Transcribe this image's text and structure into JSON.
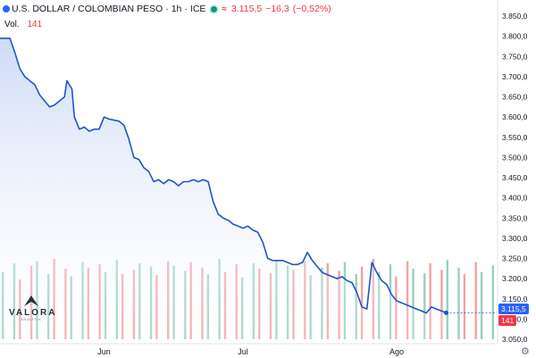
{
  "header": {
    "symbol_title": "U.S. DOLLAR / COLOMBIAN PESO",
    "interval": "1h",
    "exchange": "ICE",
    "last_price": "3.115,5",
    "change": "−16,3",
    "change_pct": "(−0,52%)",
    "separator": "·",
    "wave_glyph": "≈"
  },
  "volume": {
    "label": "Vol.",
    "value": "141"
  },
  "price_tag": "3.115,5",
  "volume_tag": "141",
  "logo": {
    "name": "VALORA",
    "sub": "ANALITIK"
  },
  "colors": {
    "line": "#1f55c9",
    "area_top": "#c9d6f5",
    "area_bottom": "#ffffff",
    "volume_up": "#7ec4b2",
    "volume_down": "#f0898e",
    "negative": "#f23645",
    "accent": "#2962ff"
  },
  "settings_icon": "gear-icon",
  "chart_data": {
    "type": "line",
    "ylim": [
      3050,
      3850
    ],
    "y_ticks": [
      "3.850,0",
      "3.800,0",
      "3.750,0",
      "3.700,0",
      "3.650,0",
      "3.600,0",
      "3.550,0",
      "3.500,0",
      "3.450,0",
      "3.400,0",
      "3.350,0",
      "3.300,0",
      "3.250,0",
      "3.200,0",
      "3.150,0",
      "3.100,0",
      "3.050,0"
    ],
    "y_tick_values": [
      3850,
      3800,
      3750,
      3700,
      3650,
      3600,
      3550,
      3500,
      3450,
      3400,
      3350,
      3300,
      3250,
      3200,
      3150,
      3100,
      3050
    ],
    "x_ticks": [
      {
        "label": "Jun",
        "x": 21
      },
      {
        "label": "Jul",
        "x": 49
      },
      {
        "label": "Ago",
        "x": 80
      }
    ],
    "x_range": [
      0,
      100
    ],
    "series": [
      {
        "values": [
          {
            "x": 0,
            "y": 3795
          },
          {
            "x": 2,
            "y": 3795
          },
          {
            "x": 3,
            "y": 3760
          },
          {
            "x": 4,
            "y": 3720
          },
          {
            "x": 5,
            "y": 3700
          },
          {
            "x": 6,
            "y": 3690
          },
          {
            "x": 7,
            "y": 3680
          },
          {
            "x": 8,
            "y": 3655
          },
          {
            "x": 9,
            "y": 3640
          },
          {
            "x": 10,
            "y": 3625
          },
          {
            "x": 11,
            "y": 3630
          },
          {
            "x": 12,
            "y": 3640
          },
          {
            "x": 13,
            "y": 3650
          },
          {
            "x": 13.5,
            "y": 3690
          },
          {
            "x": 14.5,
            "y": 3670
          },
          {
            "x": 15,
            "y": 3600
          },
          {
            "x": 16,
            "y": 3570
          },
          {
            "x": 17,
            "y": 3575
          },
          {
            "x": 18,
            "y": 3565
          },
          {
            "x": 19,
            "y": 3570
          },
          {
            "x": 20,
            "y": 3570
          },
          {
            "x": 21,
            "y": 3600
          },
          {
            "x": 22,
            "y": 3595
          },
          {
            "x": 24,
            "y": 3590
          },
          {
            "x": 25,
            "y": 3580
          },
          {
            "x": 26,
            "y": 3545
          },
          {
            "x": 27,
            "y": 3500
          },
          {
            "x": 28,
            "y": 3495
          },
          {
            "x": 29,
            "y": 3475
          },
          {
            "x": 30,
            "y": 3465
          },
          {
            "x": 31,
            "y": 3440
          },
          {
            "x": 32,
            "y": 3445
          },
          {
            "x": 33,
            "y": 3435
          },
          {
            "x": 34,
            "y": 3445
          },
          {
            "x": 35,
            "y": 3440
          },
          {
            "x": 36,
            "y": 3430
          },
          {
            "x": 37,
            "y": 3440
          },
          {
            "x": 38,
            "y": 3440
          },
          {
            "x": 39,
            "y": 3445
          },
          {
            "x": 40,
            "y": 3440
          },
          {
            "x": 41,
            "y": 3445
          },
          {
            "x": 42,
            "y": 3440
          },
          {
            "x": 43,
            "y": 3390
          },
          {
            "x": 44,
            "y": 3360
          },
          {
            "x": 45,
            "y": 3350
          },
          {
            "x": 46,
            "y": 3345
          },
          {
            "x": 47,
            "y": 3335
          },
          {
            "x": 48,
            "y": 3330
          },
          {
            "x": 49,
            "y": 3325
          },
          {
            "x": 50,
            "y": 3330
          },
          {
            "x": 51,
            "y": 3320
          },
          {
            "x": 52,
            "y": 3315
          },
          {
            "x": 53,
            "y": 3290
          },
          {
            "x": 54,
            "y": 3250
          },
          {
            "x": 55,
            "y": 3245
          },
          {
            "x": 56,
            "y": 3245
          },
          {
            "x": 57,
            "y": 3245
          },
          {
            "x": 58,
            "y": 3240
          },
          {
            "x": 59,
            "y": 3235
          },
          {
            "x": 60,
            "y": 3235
          },
          {
            "x": 61,
            "y": 3240
          },
          {
            "x": 62,
            "y": 3265
          },
          {
            "x": 63,
            "y": 3245
          },
          {
            "x": 64,
            "y": 3230
          },
          {
            "x": 65,
            "y": 3215
          },
          {
            "x": 66,
            "y": 3210
          },
          {
            "x": 67,
            "y": 3205
          },
          {
            "x": 68,
            "y": 3200
          },
          {
            "x": 69,
            "y": 3205
          },
          {
            "x": 70,
            "y": 3195
          },
          {
            "x": 71,
            "y": 3190
          },
          {
            "x": 72,
            "y": 3165
          },
          {
            "x": 73,
            "y": 3130
          },
          {
            "x": 74,
            "y": 3125
          },
          {
            "x": 75,
            "y": 3240
          },
          {
            "x": 76,
            "y": 3215
          },
          {
            "x": 77,
            "y": 3195
          },
          {
            "x": 78,
            "y": 3185
          },
          {
            "x": 79,
            "y": 3160
          },
          {
            "x": 80,
            "y": 3145
          },
          {
            "x": 81,
            "y": 3140
          },
          {
            "x": 82,
            "y": 3135
          },
          {
            "x": 83,
            "y": 3130
          },
          {
            "x": 84,
            "y": 3125
          },
          {
            "x": 85,
            "y": 3120
          },
          {
            "x": 86,
            "y": 3115
          },
          {
            "x": 87,
            "y": 3130
          },
          {
            "x": 88,
            "y": 3125
          },
          {
            "x": 89,
            "y": 3120
          },
          {
            "x": 90,
            "y": 3115.5
          }
        ]
      }
    ],
    "volume_bars": [
      62,
      0,
      70,
      55,
      0,
      68,
      72,
      0,
      60,
      74,
      0,
      65,
      58,
      0,
      71,
      66,
      0,
      69,
      62,
      0,
      73,
      60,
      0,
      64,
      70,
      0,
      67,
      59,
      0,
      72,
      68,
      0,
      63,
      71,
      0,
      66,
      60,
      0,
      74,
      62,
      0,
      69,
      57,
      0,
      70,
      65,
      0,
      61,
      73,
      0,
      68,
      64,
      0,
      72,
      59,
      0,
      66,
      70,
      0,
      63,
      71,
      0,
      60,
      67,
      0,
      74,
      62,
      0,
      69,
      58,
      0,
      72,
      65,
      0,
      61,
      70,
      0,
      64,
      73,
      0,
      66,
      60,
      0,
      71,
      62,
      0,
      68
    ]
  }
}
